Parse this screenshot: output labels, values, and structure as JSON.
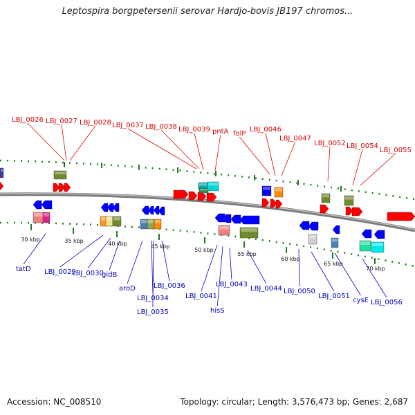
{
  "title": "Leptospira borgpetersenii serovar Hardjo-bovis JB197 chromos...",
  "footer": {
    "accession": "Accession: NC_008510",
    "summary": "Topology: circular; Length: 3,576,473 bp; Genes: 2,687"
  },
  "colors": {
    "top_label": "#d40000",
    "bottom_label": "#0000b4",
    "backbone": "#7a7a7a",
    "dots": "#1d7a1d",
    "forward_arrow": "#ff0000",
    "reverse_arrow": "#0000ff"
  },
  "scale_ticks": [
    "30 kbp",
    "35 kbp",
    "40 kbp",
    "45 kbp",
    "50 kbp",
    "55 kbp",
    "60 kbp",
    "65 kbp",
    "70 kbp"
  ],
  "top_genes": [
    "LBJ_0026",
    "LBJ_0027",
    "LBJ_0028",
    "LBJ_0037",
    "LBJ_0038",
    "LBJ_0039",
    "pntA",
    "folP",
    "LBJ_0046",
    "LBJ_0047",
    "LBJ_0052",
    "LBJ_0054",
    "LBJ_0055"
  ],
  "bottom_genes": [
    "tatD",
    "LBJ_0029",
    "LBJ_0030",
    "gidB",
    "aroD",
    "LBJ_0034",
    "LBJ_0035",
    "LBJ_0036",
    "LBJ_0041",
    "hisS",
    "LBJ_0043",
    "LBJ_0044",
    "LBJ_0050",
    "LBJ_0051",
    "cysE",
    "LBJ_0056"
  ]
}
